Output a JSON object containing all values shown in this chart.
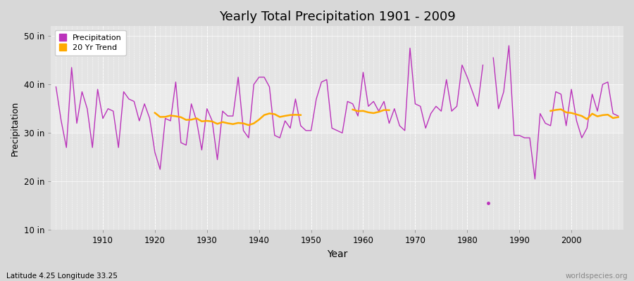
{
  "title": "Yearly Total Precipitation 1901 - 2009",
  "xlabel": "Year",
  "ylabel": "Precipitation",
  "subtitle": "Latitude 4.25 Longitude 33.25",
  "watermark": "worldspecies.org",
  "ylim": [
    10,
    52
  ],
  "yticks": [
    10,
    20,
    30,
    40,
    50
  ],
  "ytick_labels": [
    "10 in",
    "20 in",
    "30 in",
    "40 in",
    "50 in"
  ],
  "xlim": [
    1900,
    2010
  ],
  "xticks": [
    1910,
    1920,
    1930,
    1940,
    1950,
    1960,
    1970,
    1980,
    1990,
    2000
  ],
  "bg_color_outer": "#d8d8d8",
  "bg_color_upper": "#e4e4e4",
  "bg_color_band": "#ebebeb",
  "precip_color": "#bb33bb",
  "trend_color": "#ffaa00",
  "precip_linewidth": 1.0,
  "trend_linewidth": 1.8,
  "band_ymin": 30,
  "band_ymax": 40,
  "years": [
    1901,
    1902,
    1903,
    1904,
    1905,
    1906,
    1907,
    1908,
    1909,
    1910,
    1911,
    1912,
    1913,
    1914,
    1915,
    1916,
    1917,
    1918,
    1919,
    1920,
    1921,
    1922,
    1923,
    1924,
    1925,
    1926,
    1927,
    1928,
    1929,
    1930,
    1931,
    1932,
    1933,
    1934,
    1935,
    1936,
    1937,
    1938,
    1939,
    1940,
    1941,
    1942,
    1943,
    1944,
    1945,
    1946,
    1947,
    1948,
    1949,
    1950,
    1951,
    1952,
    1953,
    1954,
    1955,
    1956,
    1957,
    1958,
    1959,
    1960,
    1961,
    1962,
    1963,
    1964,
    1965,
    1966,
    1967,
    1968,
    1969,
    1970,
    1971,
    1972,
    1973,
    1974,
    1975,
    1976,
    1977,
    1978,
    1979,
    1980,
    1981,
    1982,
    1983,
    1984,
    1985,
    1986,
    1987,
    1988,
    1989,
    1990,
    1991,
    1992,
    1993,
    1994,
    1995,
    1996,
    1997,
    1998,
    1999,
    2000,
    2001,
    2002,
    2003,
    2004,
    2005,
    2006,
    2007,
    2008,
    2009
  ],
  "precip": [
    39.5,
    32.5,
    27.0,
    43.5,
    32.0,
    38.5,
    35.0,
    27.0,
    39.0,
    33.0,
    35.0,
    34.5,
    27.0,
    38.5,
    37.0,
    36.5,
    32.5,
    36.0,
    33.0,
    26.0,
    22.5,
    33.0,
    32.5,
    40.5,
    28.0,
    27.5,
    36.0,
    32.5,
    26.5,
    35.0,
    32.5,
    24.5,
    34.5,
    33.5,
    33.5,
    41.5,
    30.5,
    29.0,
    40.0,
    41.5,
    41.5,
    39.5,
    29.5,
    29.0,
    32.5,
    31.0,
    37.0,
    31.5,
    30.5,
    30.5,
    37.0,
    40.5,
    41.0,
    31.0,
    30.5,
    30.0,
    36.5,
    36.0,
    33.5,
    42.5,
    35.5,
    36.5,
    34.5,
    36.5,
    32.0,
    35.0,
    31.5,
    30.5,
    47.5,
    36.0,
    35.5,
    31.0,
    34.0,
    35.5,
    34.5,
    41.0,
    34.5,
    35.5,
    44.0,
    41.5,
    38.5,
    35.5,
    44.0,
    15.5,
    45.5,
    35.0,
    38.5,
    48.0,
    29.5,
    29.5,
    29.0,
    29.0,
    20.5,
    34.0,
    32.0,
    31.5,
    38.5,
    38.0,
    31.5,
    39.0,
    32.5,
    29.0,
    31.0,
    38.0,
    34.5,
    40.0,
    40.5,
    34.0,
    33.5
  ],
  "outlier_year": 1984,
  "outlier_val": 15.5,
  "trend_segments": [
    {
      "x_start": 1920,
      "x_end": 1948
    },
    {
      "x_start": 1958,
      "x_end": 1965
    },
    {
      "x_start": 1996,
      "x_end": 2009
    }
  ]
}
